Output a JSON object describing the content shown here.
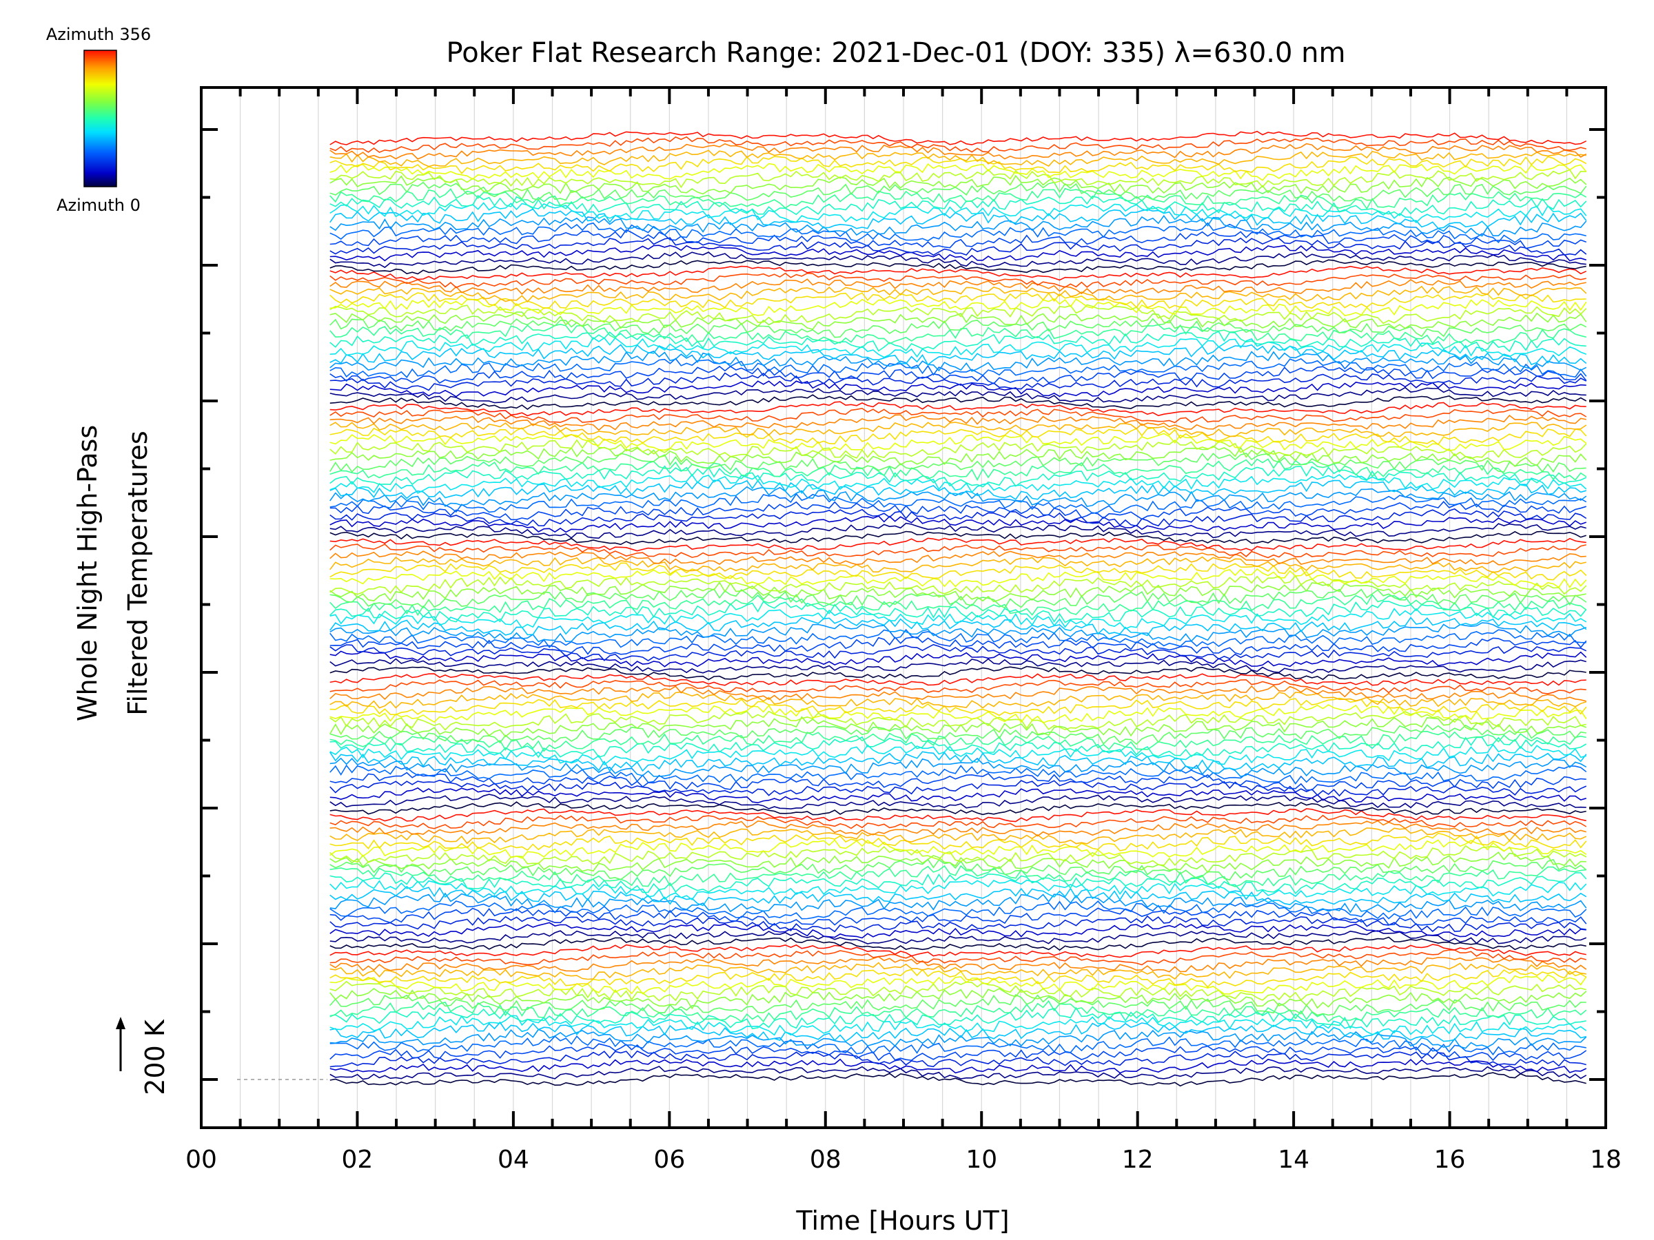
{
  "chart_data": {
    "type": "line",
    "title": "Poker Flat Research Range: 2021-Dec-01 (DOY: 335) λ=630.0 nm",
    "xlabel": "Time [Hours UT]",
    "ylabel_line1": "Whole Night High-Pass",
    "ylabel_line2": "Filtered Temperatures",
    "xlim": [
      0,
      18
    ],
    "x_ticks": [
      "00",
      "02",
      "04",
      "06",
      "08",
      "10",
      "12",
      "14",
      "16",
      "18"
    ],
    "x_tick_values": [
      0,
      2,
      4,
      6,
      8,
      10,
      12,
      14,
      16,
      18
    ],
    "scale_bar_label": "200 K",
    "colorbar": {
      "top_label": "Azimuth 356",
      "bottom_label": "Azimuth 0",
      "min": 0,
      "max": 356
    },
    "data_start_hour": 1.65,
    "data_end_hour": 17.75,
    "grid": true,
    "legend": "colorbar top-left",
    "series_count": 140,
    "azimuth_cycle": 20
  }
}
